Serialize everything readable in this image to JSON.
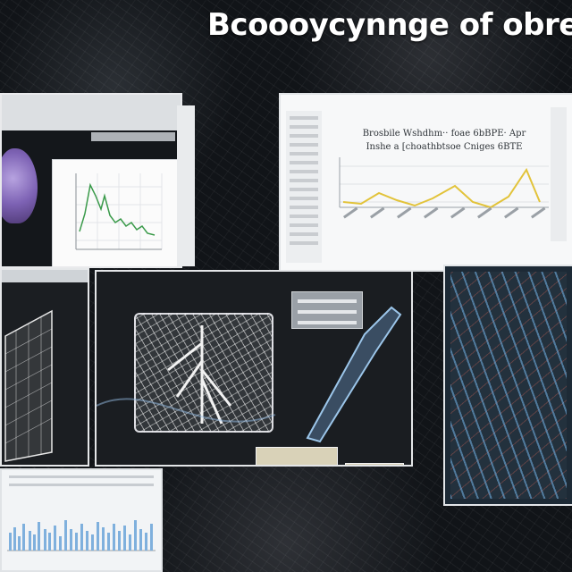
{
  "title": "Bcoooycynnge of obrel",
  "panel_chart": {
    "title_line1": "Brosbile Wshdhm·· foae 6bBPE· Apr",
    "title_line2": "Inshe a [choathbtsoe Cniges 6BTE"
  },
  "colors": {
    "background": "#111418",
    "line_yellow": "#e2c33a",
    "line_green": "#3a9a4a",
    "blob_purple": "#7d62b4",
    "mesh_blue": "#6eaadc"
  }
}
